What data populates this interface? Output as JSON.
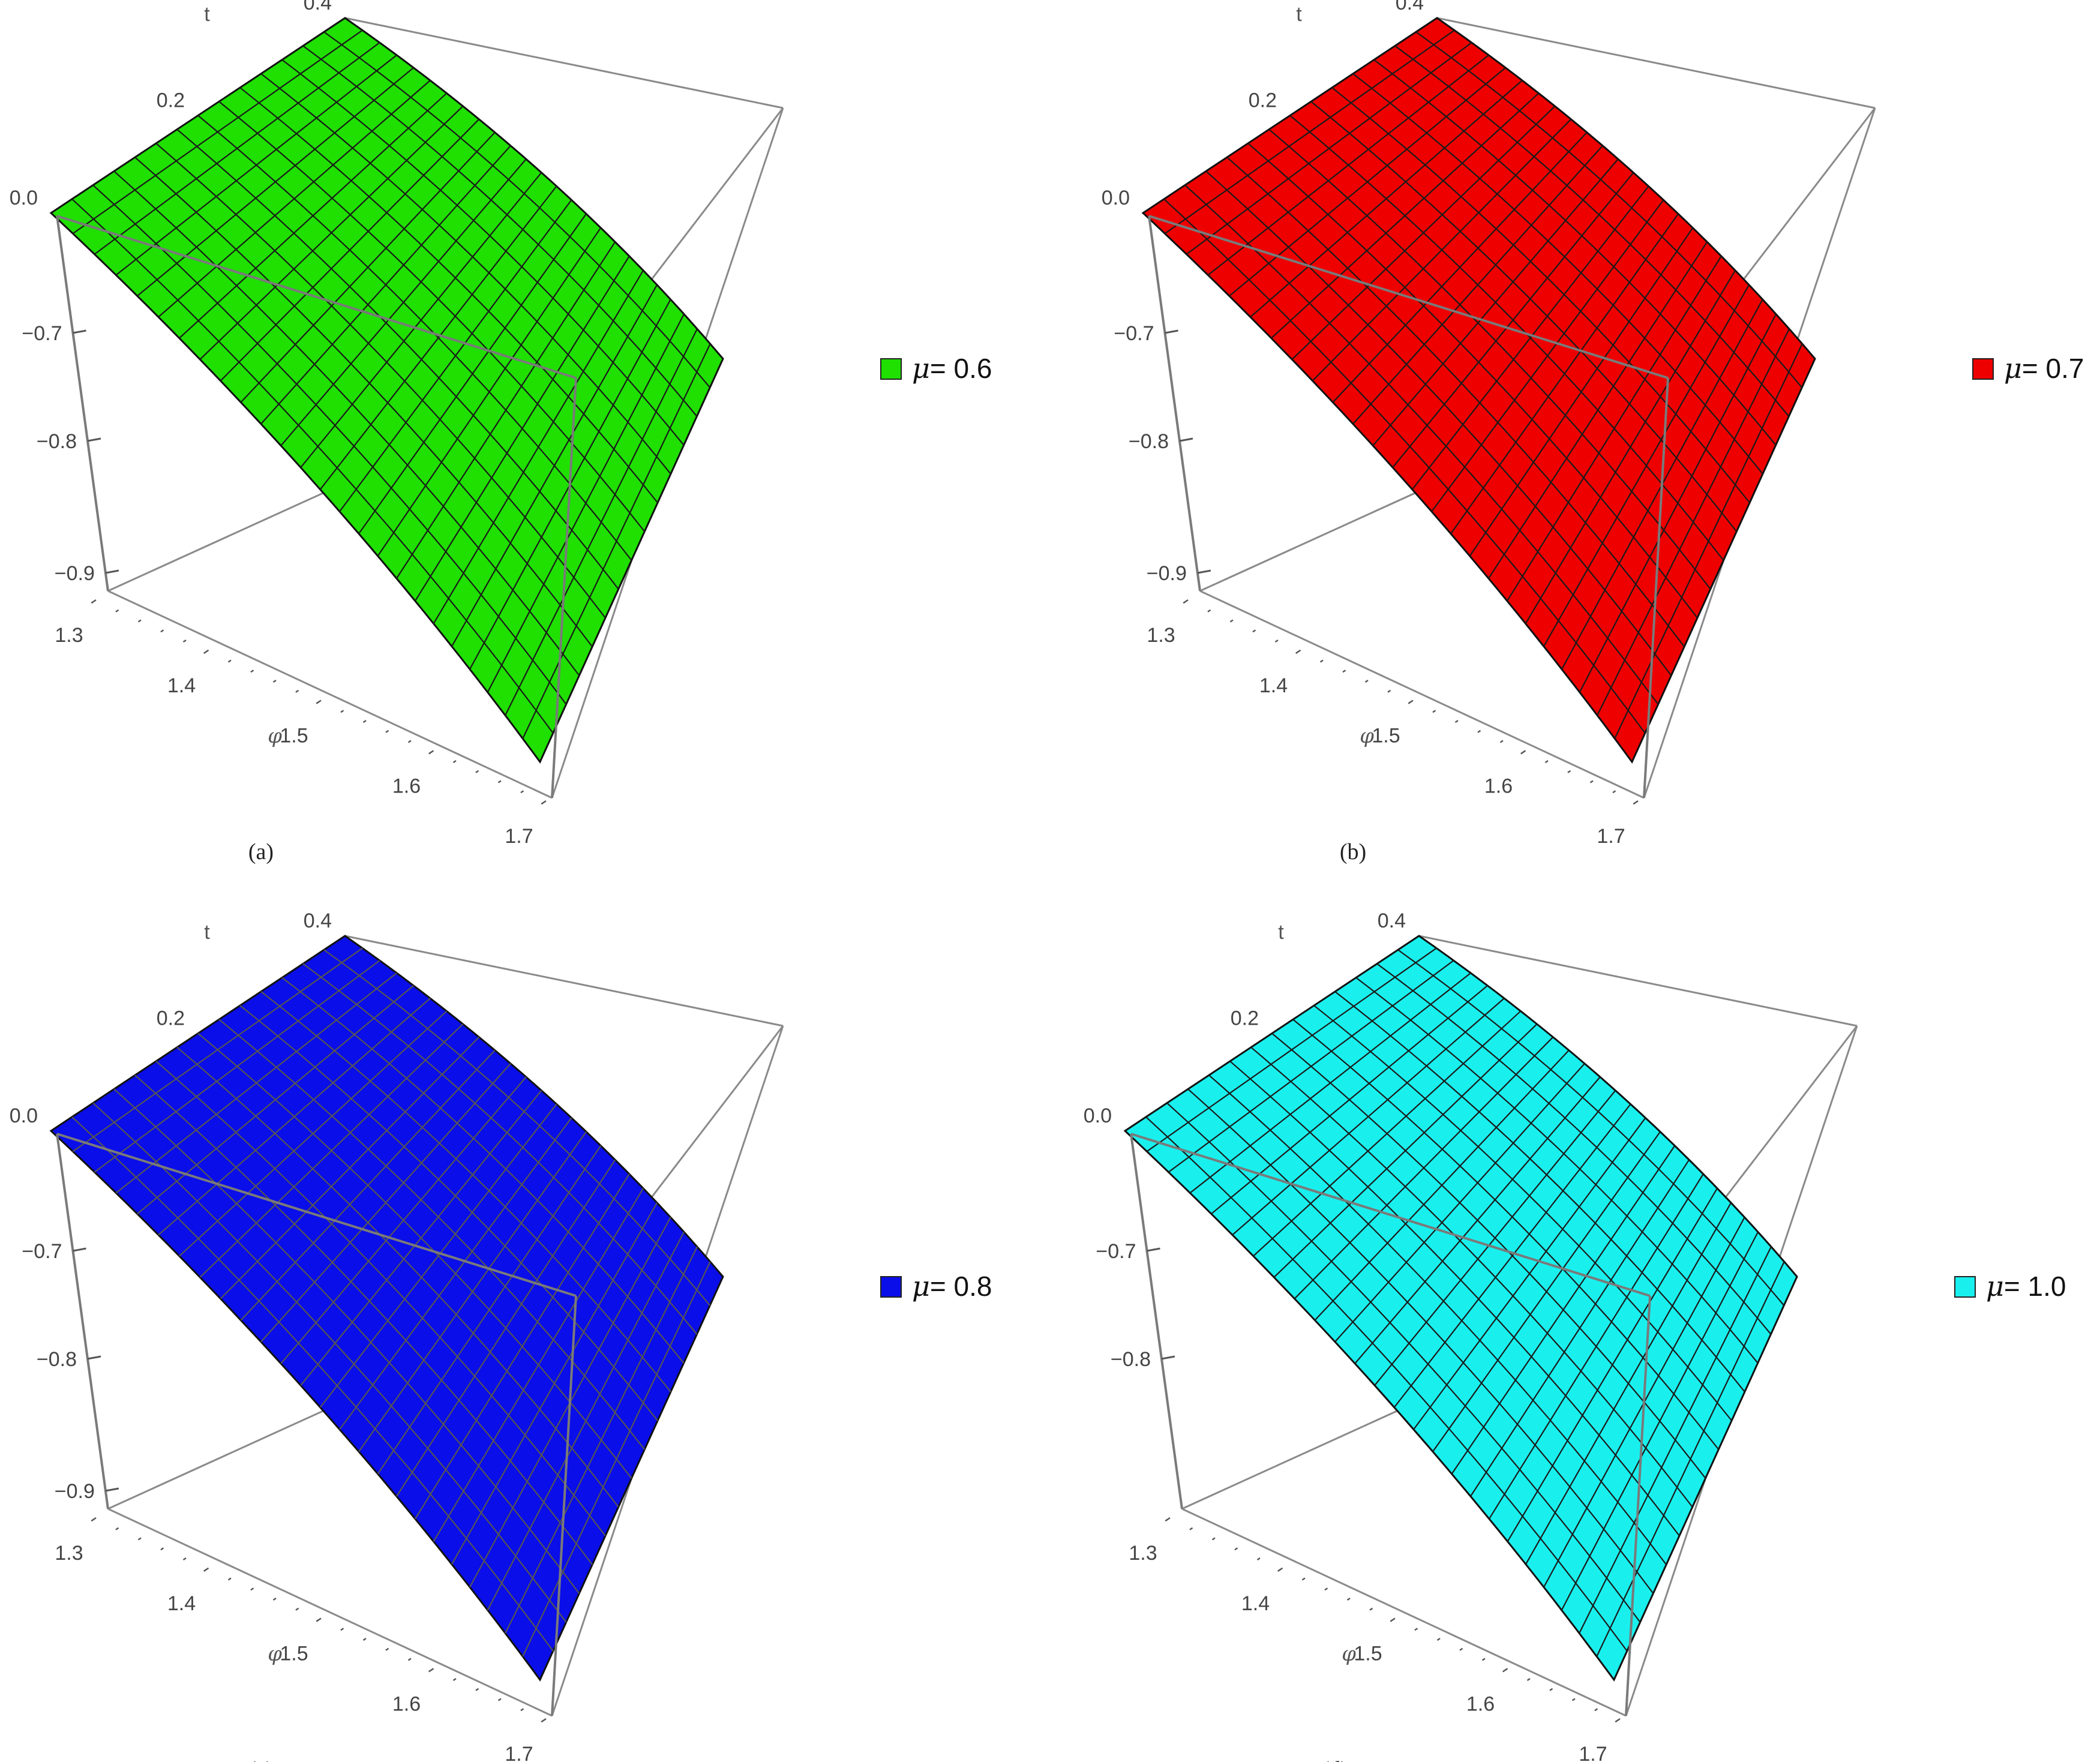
{
  "chart_data": [
    {
      "panel_label": "(a)",
      "type": "surface3d",
      "legend": {
        "symbol": "μ",
        "text": "= 0.6"
      },
      "color": "#1fe000",
      "mesh_color": "#1a1a1a",
      "axes": {
        "phi": {
          "label": "φ",
          "ticks": [
            "1.3",
            "1.4",
            "1.5",
            "1.6",
            "1.7"
          ],
          "range": [
            1.3,
            1.7
          ]
        },
        "t": {
          "label": "t",
          "ticks": [
            "0.0",
            "0.2",
            "0.4"
          ],
          "range": [
            0.0,
            0.4
          ]
        },
        "z": {
          "ticks": [
            "-0.7",
            "-0.8",
            "-0.9"
          ]
        }
      }
    },
    {
      "panel_label": "(b)",
      "type": "surface3d",
      "legend": {
        "symbol": "μ",
        "text": "= 0.7"
      },
      "color": "#ee0000",
      "mesh_color": "#1a1a1a",
      "axes": {
        "phi": {
          "label": "φ",
          "ticks": [
            "1.3",
            "1.4",
            "1.5",
            "1.6",
            "1.7"
          ],
          "range": [
            1.3,
            1.7
          ]
        },
        "t": {
          "label": "t",
          "ticks": [
            "0.0",
            "0.2",
            "0.4"
          ],
          "range": [
            0.0,
            0.4
          ]
        },
        "z": {
          "ticks": [
            "-0.7",
            "-0.8",
            "-0.9"
          ]
        }
      }
    },
    {
      "panel_label": "(c)",
      "type": "surface3d",
      "legend": {
        "symbol": "μ",
        "text": "= 0.8"
      },
      "color": "#0a0ee8",
      "mesh_color": "#555555",
      "axes": {
        "phi": {
          "label": "φ",
          "ticks": [
            "1.3",
            "1.4",
            "1.5",
            "1.6",
            "1.7"
          ],
          "range": [
            1.3,
            1.7
          ]
        },
        "t": {
          "label": "t",
          "ticks": [
            "0.0",
            "0.2",
            "0.4"
          ],
          "range": [
            0.0,
            0.4
          ]
        },
        "z": {
          "ticks": [
            "-0.7",
            "-0.8",
            "-0.9"
          ]
        }
      }
    },
    {
      "panel_label": "(d)",
      "type": "surface3d",
      "legend": {
        "symbol": "μ",
        "text": "= 1.0"
      },
      "color": "#19f0ee",
      "mesh_color": "#1a1a1a",
      "axes": {
        "phi": {
          "label": "φ",
          "ticks": [
            "1.3",
            "1.4",
            "1.5",
            "1.6",
            "1.7"
          ],
          "range": [
            1.3,
            1.7
          ]
        },
        "t": {
          "label": "t",
          "ticks": [
            "0.0",
            "0.2",
            "0.4"
          ],
          "range": [
            0.0,
            0.4
          ]
        },
        "z": {
          "ticks": [
            "-0.7",
            "-0.8"
          ]
        }
      }
    }
  ]
}
